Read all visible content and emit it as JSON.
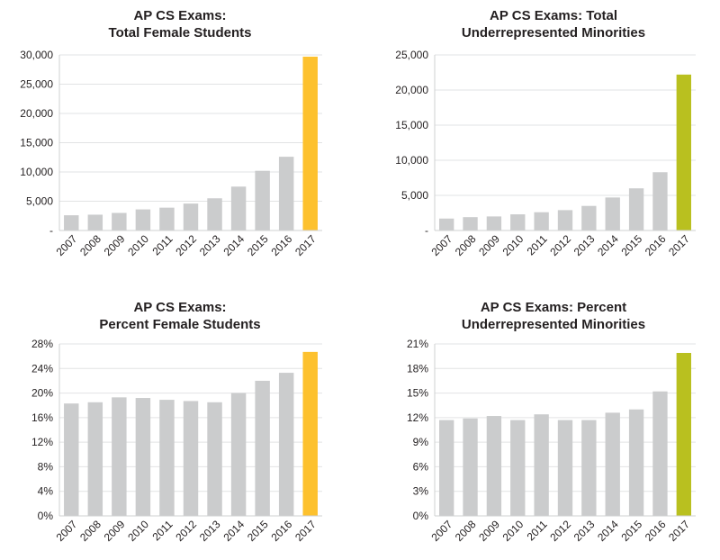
{
  "chart_data": [
    {
      "type": "bar",
      "title_lines": [
        "AP CS Exams:",
        "Total Female Students"
      ],
      "categories": [
        "2007",
        "2008",
        "2009",
        "2010",
        "2011",
        "2012",
        "2013",
        "2014",
        "2015",
        "2016",
        "2017"
      ],
      "values": [
        2600,
        2700,
        3000,
        3600,
        3900,
        4600,
        5500,
        7500,
        10200,
        12600,
        29700
      ],
      "ylim": [
        0,
        30000
      ],
      "yticks": [
        0,
        5000,
        10000,
        15000,
        20000,
        25000,
        30000
      ],
      "ytick_labels": [
        "-",
        "5,000",
        "10,000",
        "15,000",
        "20,000",
        "25,000",
        "30,000"
      ],
      "bar_color": "#cbcccd",
      "highlight_color": "#fdc12e",
      "xlabel": "",
      "ylabel": ""
    },
    {
      "type": "bar",
      "title_lines": [
        "AP CS Exams: Total",
        "Underrepresented Minorities"
      ],
      "categories": [
        "2007",
        "2008",
        "2009",
        "2010",
        "2011",
        "2012",
        "2013",
        "2014",
        "2015",
        "2016",
        "2017"
      ],
      "values": [
        1700,
        1900,
        2000,
        2300,
        2600,
        2900,
        3500,
        4700,
        6000,
        8300,
        22200
      ],
      "ylim": [
        0,
        25000
      ],
      "yticks": [
        0,
        5000,
        10000,
        15000,
        20000,
        25000
      ],
      "ytick_labels": [
        "-",
        "5,000",
        "10,000",
        "15,000",
        "20,000",
        "25,000"
      ],
      "bar_color": "#cbcccd",
      "highlight_color": "#b9c01f",
      "xlabel": "",
      "ylabel": ""
    },
    {
      "type": "bar",
      "title_lines": [
        "AP CS Exams:",
        "Percent Female Students"
      ],
      "categories": [
        "2007",
        "2008",
        "2009",
        "2010",
        "2011",
        "2012",
        "2013",
        "2014",
        "2015",
        "2016",
        "2017"
      ],
      "values": [
        18.3,
        18.5,
        19.3,
        19.2,
        18.9,
        18.7,
        18.5,
        20.0,
        22.0,
        23.3,
        26.7
      ],
      "ylim": [
        0,
        28
      ],
      "yticks": [
        0,
        4,
        8,
        12,
        16,
        20,
        24,
        28
      ],
      "ytick_labels": [
        "0%",
        "4%",
        "8%",
        "12%",
        "16%",
        "20%",
        "24%",
        "28%"
      ],
      "bar_color": "#cbcccd",
      "highlight_color": "#fdc12e",
      "xlabel": "",
      "ylabel": ""
    },
    {
      "type": "bar",
      "title_lines": [
        "AP CS Exams: Percent",
        "Underrepresented Minorities"
      ],
      "categories": [
        "2007",
        "2008",
        "2009",
        "2010",
        "2011",
        "2012",
        "2013",
        "2014",
        "2015",
        "2016",
        "2017"
      ],
      "values": [
        11.7,
        11.9,
        12.2,
        11.7,
        12.4,
        11.7,
        11.7,
        12.6,
        13.0,
        15.2,
        19.9
      ],
      "ylim": [
        0,
        21
      ],
      "yticks": [
        0,
        3,
        6,
        9,
        12,
        15,
        18,
        21
      ],
      "ytick_labels": [
        "0%",
        "3%",
        "6%",
        "9%",
        "12%",
        "15%",
        "18%",
        "21%"
      ],
      "bar_color": "#cbcccd",
      "highlight_color": "#b9c01f",
      "xlabel": "",
      "ylabel": ""
    }
  ]
}
